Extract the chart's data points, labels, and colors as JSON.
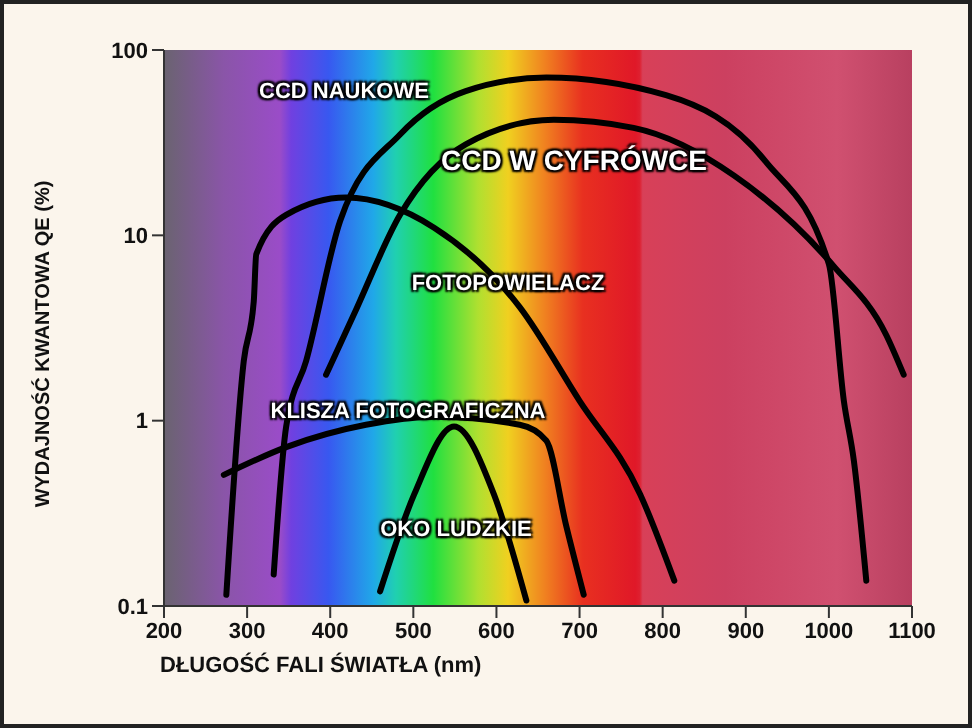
{
  "chart_data": {
    "type": "line",
    "xlabel": "DŁUGOŚĆ FALI ŚWIATŁA (nm)",
    "ylabel": "WYDAJNOŚĆ KWANTOWA QE (%)",
    "xlim": [
      200,
      1100
    ],
    "xticks": [
      200,
      300,
      400,
      500,
      600,
      700,
      800,
      900,
      1000,
      1100
    ],
    "ylim": [
      0.1,
      100
    ],
    "yticks": [
      0.1,
      1,
      10,
      100
    ],
    "log": "y",
    "marker": "none",
    "line_style": "solid",
    "series": [
      {
        "name": "CCD NAUKOWE",
        "color": "#000000",
        "x": [
          332,
          347,
          371,
          412,
          484,
          563,
          660,
          804,
          924,
          1000,
          1018,
          1030,
          1045
        ],
        "values": [
          0.148,
          0.93,
          2.1,
          12,
          35,
          60,
          71,
          57,
          25,
          7,
          1.28,
          0.61,
          0.137
        ]
      },
      {
        "name": "CCD W CYFRÓWCE",
        "color": "#000000",
        "x": [
          395,
          428,
          484,
          563,
          669,
          765,
          886,
          1006,
          1069,
          1090
        ],
        "values": [
          1.77,
          3.7,
          12.9,
          31,
          42,
          38,
          21,
          6.8,
          2.9,
          1.77
        ]
      },
      {
        "name": "FOTOPOWIELACZ",
        "color": "#000000",
        "x": [
          275,
          296,
          308,
          311,
          347,
          419,
          525,
          628,
          700,
          773,
          814
        ],
        "values": [
          0.115,
          2.1,
          4.4,
          7.9,
          12.9,
          16,
          11,
          4.1,
          1.28,
          0.4,
          0.137
        ]
      },
      {
        "name": "KLISZA FOTOGRAFICZNA",
        "color": "#000000",
        "x": [
          272,
          347,
          443,
          525,
          628,
          660,
          684,
          705
        ],
        "values": [
          0.51,
          0.72,
          0.95,
          1.05,
          0.95,
          0.78,
          0.27,
          0.115
        ]
      },
      {
        "name": "OKO LUDZKIE",
        "color": "#000000",
        "x": [
          460,
          501,
          549,
          597,
          636
        ],
        "values": [
          0.12,
          0.4,
          0.93,
          0.4,
          0.107
        ]
      }
    ]
  }
}
